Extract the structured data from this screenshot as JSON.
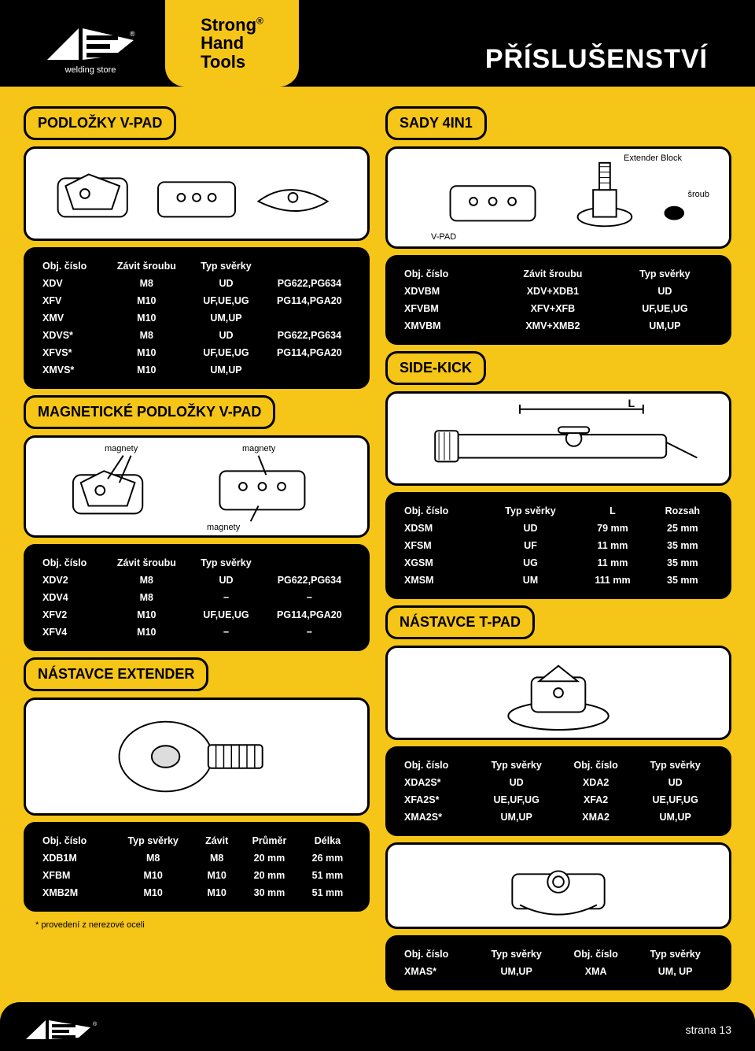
{
  "header": {
    "logo_sub": "welding store",
    "brand_line1": "Strong",
    "brand_line2": "Hand",
    "brand_line3": "Tools",
    "brand_reg": "®",
    "title": "PŘÍSLUŠENSTVÍ"
  },
  "section_vpad": {
    "title": "PODLOŽKY V-PAD",
    "headers": [
      "Obj. číslo",
      "Závit šroubu",
      "Typ svěrky",
      ""
    ],
    "rows": [
      [
        "XDV",
        "M8",
        "UD",
        "PG622,PG634"
      ],
      [
        "XFV",
        "M10",
        "UF,UE,UG",
        "PG114,PGA20"
      ],
      [
        "XMV",
        "M10",
        "UM,UP",
        ""
      ],
      [
        "XDVS*",
        "M8",
        "UD",
        "PG622,PG634"
      ],
      [
        "XFVS*",
        "M10",
        "UF,UE,UG",
        "PG114,PGA20"
      ],
      [
        "XMVS*",
        "M10",
        "UM,UP",
        ""
      ]
    ]
  },
  "section_magnetic": {
    "title": "MAGNETICKÉ PODLOŽKY V-PAD",
    "label_magnets": "magnety",
    "headers": [
      "Obj. číslo",
      "Závit šroubu",
      "Typ svěrky",
      ""
    ],
    "rows": [
      [
        "XDV2",
        "M8",
        "UD",
        "PG622,PG634"
      ],
      [
        "XDV4",
        "M8",
        "−",
        "−"
      ],
      [
        "XFV2",
        "M10",
        "UF,UE,UG",
        "PG114,PGA20"
      ],
      [
        "XFV4",
        "M10",
        "−",
        "−"
      ]
    ]
  },
  "section_extender": {
    "title": "NÁSTAVCE EXTENDER",
    "headers": [
      "Obj. číslo",
      "Typ svěrky",
      "Závit",
      "Průměr",
      "Délka"
    ],
    "rows": [
      [
        "XDB1M",
        "M8",
        "M8",
        "20 mm",
        "26 mm"
      ],
      [
        "XFBM",
        "M10",
        "M10",
        "20 mm",
        "51 mm"
      ],
      [
        "XMB2M",
        "M10",
        "M10",
        "30 mm",
        "51 mm"
      ]
    ],
    "footnote": "* provedení z nerezové oceli"
  },
  "section_4in1": {
    "title": "SADY 4IN1",
    "label_extender": "Extender Block",
    "label_sroub": "šroub",
    "label_vpad": "V-PAD",
    "headers": [
      "Obj. číslo",
      "Závit šroubu",
      "Typ svěrky"
    ],
    "rows": [
      [
        "XDVBM",
        "XDV+XDB1",
        "UD"
      ],
      [
        "XFVBM",
        "XFV+XFB",
        "UF,UE,UG"
      ],
      [
        "XMVBM",
        "XMV+XMB2",
        "UM,UP"
      ]
    ]
  },
  "section_sidekick": {
    "title": "SIDE-KICK",
    "label_L": "L",
    "headers": [
      "Obj. číslo",
      "Typ svěrky",
      "L",
      "Rozsah"
    ],
    "rows": [
      [
        "XDSM",
        "UD",
        "79 mm",
        "25 mm"
      ],
      [
        "XFSM",
        "UF",
        "11 mm",
        "35 mm"
      ],
      [
        "XGSM",
        "UG",
        "11 mm",
        "35 mm"
      ],
      [
        "XMSM",
        "UM",
        "111 mm",
        "35 mm"
      ]
    ]
  },
  "section_tpad": {
    "title": "NÁSTAVCE T-PAD",
    "headers1": [
      "Obj. číslo",
      "Typ svěrky",
      "Obj. číslo",
      "Typ svěrky"
    ],
    "rows1": [
      [
        "XDA2S*",
        "UD",
        "XDA2",
        "UD"
      ],
      [
        "XFA2S*",
        "UE,UF,UG",
        "XFA2",
        "UE,UF,UG"
      ],
      [
        "XMA2S*",
        "UM,UP",
        "XMA2",
        "UM,UP"
      ]
    ],
    "headers2": [
      "Obj. číslo",
      "Typ svěrky",
      "Obj. číslo",
      "Typ svěrky"
    ],
    "rows2": [
      [
        "XMAS*",
        "UM,UP",
        "XMA",
        "UM, UP"
      ]
    ]
  },
  "footer": {
    "page": "strana 13"
  }
}
